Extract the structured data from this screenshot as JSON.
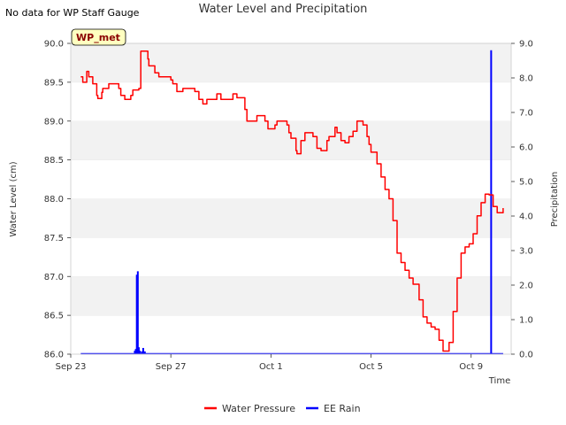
{
  "header": {
    "note": "No data for WP Staff Gauge",
    "title": "Water Level and Precipitation"
  },
  "chart_data": {
    "type": "line",
    "title": "Water Level and Precipitation",
    "badge": "WP_met",
    "xlabel": "Time",
    "ylabel": "Water Level (cm)",
    "y2label": "Precipitation",
    "xlim": [
      0,
      22
    ],
    "ylim": [
      86.0,
      90.0
    ],
    "y2lim": [
      0.0,
      9.0
    ],
    "x_ticks": [
      {
        "x": 0,
        "label": "Sep 23"
      },
      {
        "x": 5,
        "label": "Sep 27"
      },
      {
        "x": 10,
        "label": "Oct 1"
      },
      {
        "x": 15,
        "label": "Oct 5"
      },
      {
        "x": 20,
        "label": "Oct 9"
      }
    ],
    "y_ticks": [
      "86.0",
      "86.5",
      "87.0",
      "87.5",
      "88.0",
      "88.5",
      "89.0",
      "89.5",
      "90.0"
    ],
    "y2_ticks": [
      "0.0",
      "1.0",
      "2.0",
      "3.0",
      "4.0",
      "5.0",
      "6.0",
      "7.0",
      "8.0",
      "9.0"
    ],
    "grid": "horizontal bands",
    "legend_position": "bottom-center",
    "colors": {
      "water_pressure": "#ff0000",
      "ee_rain": "#0000ff",
      "band": "#f2f2f2",
      "badge_fill": "#ffffc0"
    },
    "series": [
      {
        "name": "Water Pressure",
        "axis": "left",
        "x": [
          0.5,
          0.6,
          0.8,
          0.9,
          1.1,
          1.3,
          1.35,
          1.55,
          1.6,
          1.9,
          2.4,
          2.5,
          2.7,
          3.0,
          3.1,
          3.4,
          3.5,
          3.85,
          3.9,
          4.2,
          4.4,
          4.6,
          4.8,
          5.0,
          5.1,
          5.3,
          5.5,
          5.6,
          6.0,
          6.2,
          6.4,
          6.6,
          6.8,
          7.3,
          7.5,
          7.7,
          7.9,
          8.1,
          8.3,
          8.7,
          8.8,
          9.3,
          9.6,
          9.7,
          9.85,
          10.2,
          10.3,
          10.55,
          10.8,
          10.9,
          11.0,
          11.25,
          11.3,
          11.5,
          11.7,
          12.0,
          12.1,
          12.3,
          12.5,
          12.8,
          12.9,
          13.2,
          13.3,
          13.5,
          13.7,
          13.9,
          14.1,
          14.3,
          14.6,
          14.8,
          14.9,
          15.0,
          15.1,
          15.3,
          15.5,
          15.7,
          15.9,
          16.1,
          16.3,
          16.5,
          16.7,
          16.9,
          17.1,
          17.4,
          17.6,
          17.8,
          18.0,
          18.2,
          18.4,
          18.6,
          18.9,
          19.1,
          19.3,
          19.5,
          19.7,
          19.9,
          20.1,
          20.3,
          20.5,
          20.7,
          20.9,
          21.1,
          21.3,
          21.6
        ],
        "y": [
          89.57,
          89.5,
          89.64,
          89.57,
          89.48,
          89.33,
          89.29,
          89.37,
          89.42,
          89.48,
          89.42,
          89.33,
          89.28,
          89.33,
          89.4,
          89.42,
          89.9,
          89.8,
          89.71,
          89.62,
          89.57,
          89.57,
          89.57,
          89.53,
          89.48,
          89.38,
          89.38,
          89.42,
          89.42,
          89.38,
          89.28,
          89.22,
          89.28,
          89.35,
          89.28,
          89.28,
          89.28,
          89.35,
          89.3,
          89.15,
          89.0,
          89.07,
          89.07,
          89.0,
          88.9,
          88.95,
          89.0,
          89.0,
          88.95,
          88.85,
          88.78,
          88.62,
          88.58,
          88.75,
          88.85,
          88.85,
          88.8,
          88.65,
          88.62,
          88.75,
          88.8,
          88.92,
          88.85,
          88.75,
          88.72,
          88.8,
          88.87,
          89.0,
          88.95,
          88.8,
          88.7,
          88.6,
          88.6,
          88.45,
          88.28,
          88.12,
          88.0,
          87.72,
          87.3,
          87.18,
          87.08,
          86.98,
          86.9,
          86.7,
          86.48,
          86.4,
          86.35,
          86.32,
          86.18,
          86.04,
          86.15,
          86.55,
          86.98,
          87.3,
          87.38,
          87.42,
          87.55,
          87.78,
          87.95,
          88.06,
          88.05,
          87.9,
          87.82,
          87.88
        ]
      },
      {
        "name": "EE Rain",
        "axis": "right",
        "type": "bar",
        "x": [
          3.2,
          3.25,
          3.3,
          3.35,
          3.4,
          3.45,
          3.55,
          3.62,
          3.7,
          21.0
        ],
        "y": [
          0.1,
          0.15,
          2.3,
          2.4,
          0.2,
          0.1,
          0.08,
          0.18,
          0.08,
          8.8
        ]
      }
    ]
  }
}
